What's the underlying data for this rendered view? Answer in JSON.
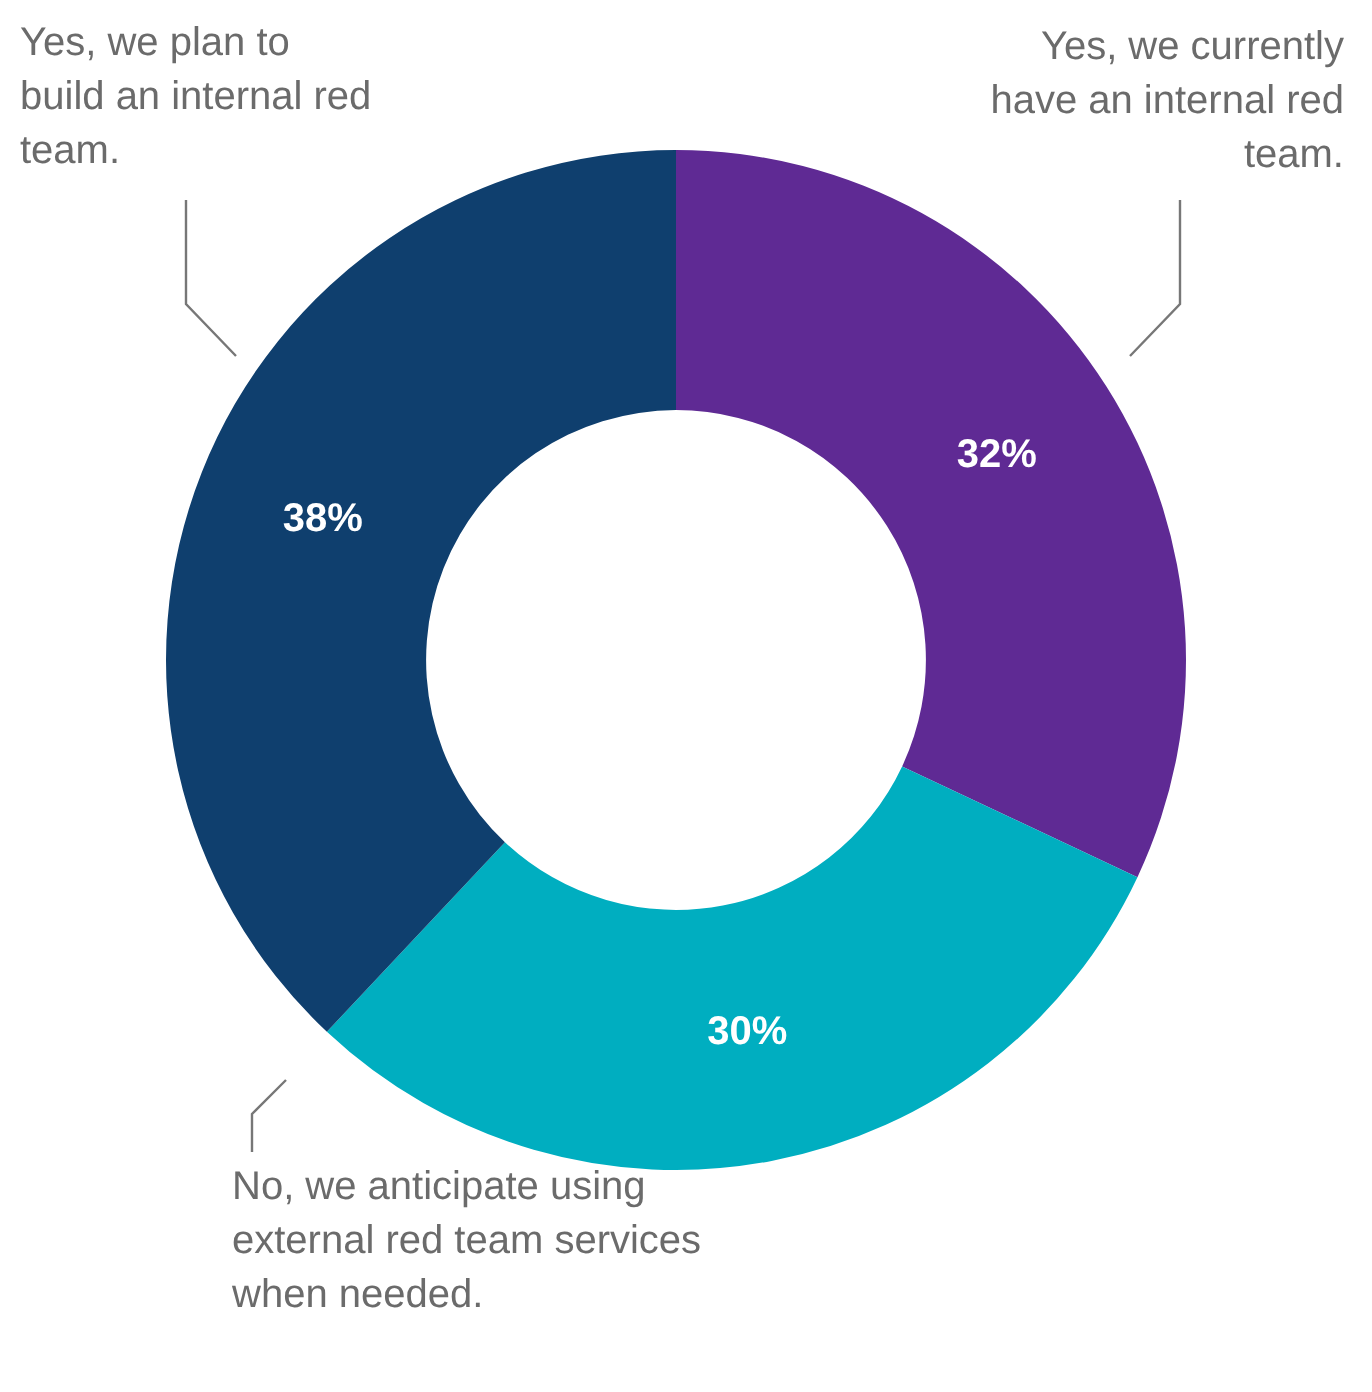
{
  "chart_data": {
    "type": "donut",
    "categories": [
      "Yes, we currently have an internal red team.",
      "No, we anticipate using external red team services when needed.",
      "Yes, we plan to build an internal red team."
    ],
    "values": [
      32,
      30,
      38
    ],
    "colors": [
      "#5f2a94",
      "#00aec0",
      "#0f3f6e"
    ],
    "value_labels": [
      "32%",
      "30%",
      "38%"
    ],
    "legend": false
  }
}
